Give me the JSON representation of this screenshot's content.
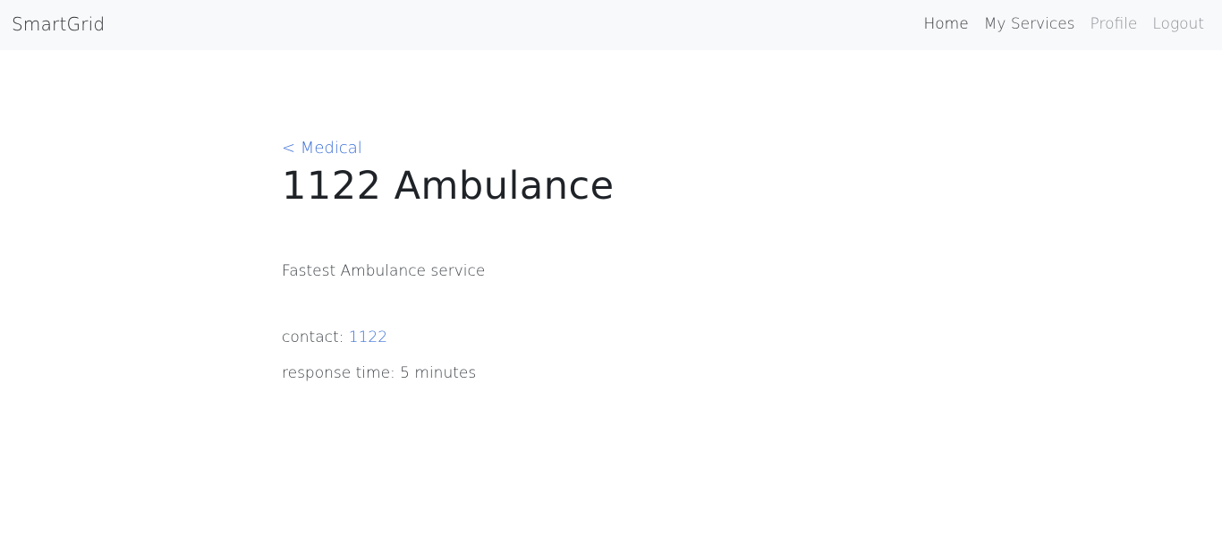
{
  "navbar": {
    "brand": "SmartGrid",
    "links": [
      {
        "label": "Home"
      },
      {
        "label": "My Services"
      },
      {
        "label": "Profile"
      },
      {
        "label": "Logout"
      }
    ]
  },
  "page": {
    "back_link": "< Medical",
    "title": "1122 Ambulance",
    "description": "Fastest Ambulance service",
    "contact_label": "contact:",
    "contact_value": "1122",
    "response_label": "response time:",
    "response_value": "5 minutes"
  },
  "colors": {
    "navbar_bg": "#f8f9fa",
    "link_blue": "#3b6fd8",
    "text_dark": "#212529",
    "nav_muted": "#8a8f94"
  }
}
